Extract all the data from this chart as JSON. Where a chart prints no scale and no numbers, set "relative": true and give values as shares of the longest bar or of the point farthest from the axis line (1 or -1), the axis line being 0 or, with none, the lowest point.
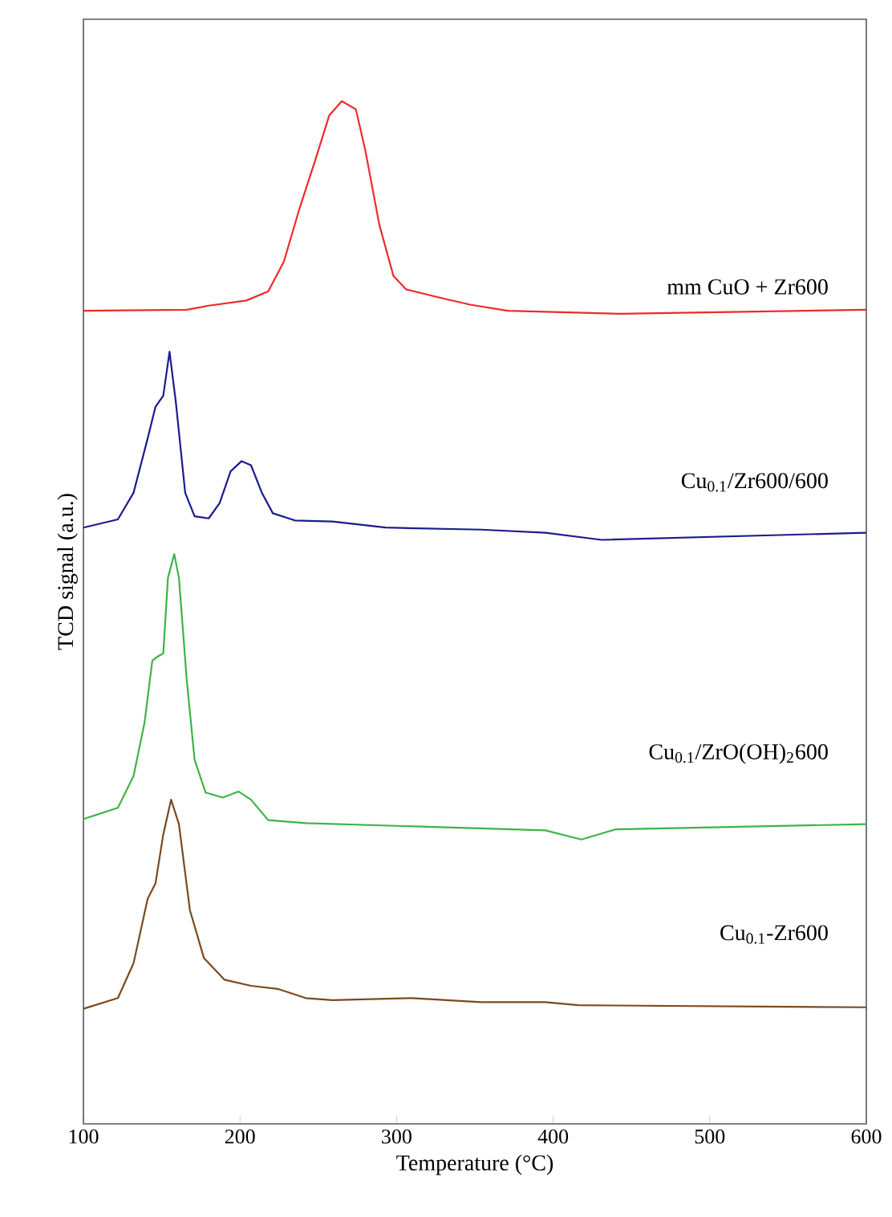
{
  "chart_data": {
    "type": "line",
    "relative": true,
    "xlabel": "Temperature (°C)",
    "ylabel": "TCD signal (a.u.)",
    "xlim": [
      100,
      600
    ],
    "xticks": [
      100,
      200,
      300,
      400,
      500,
      600
    ],
    "series": [
      {
        "name": "mm CuO + Zr600",
        "color": "#ee2a2a",
        "x": [
          100,
          166,
          180,
          204,
          218,
          228,
          238,
          248,
          257,
          265,
          274,
          280,
          289,
          298,
          306,
          327,
          347,
          371,
          395,
          443,
          600
        ],
        "values": [
          0.795,
          0.796,
          0.8,
          0.805,
          0.814,
          0.843,
          0.895,
          0.942,
          0.986,
          1.0,
          0.992,
          0.952,
          0.879,
          0.829,
          0.816,
          0.808,
          0.801,
          0.795,
          0.794,
          0.792,
          0.796
        ]
      },
      {
        "name": "Cu$_{0.1}$/Zr600/600",
        "color": "#1c1c8e",
        "x": [
          100,
          122,
          132,
          141,
          146,
          151,
          155,
          159,
          165,
          171,
          180,
          187,
          194,
          201,
          207,
          214,
          221,
          235,
          259,
          293,
          354,
          395,
          431,
          600
        ],
        "values": [
          0.583,
          0.591,
          0.617,
          0.67,
          0.701,
          0.712,
          0.755,
          0.706,
          0.617,
          0.594,
          0.592,
          0.607,
          0.638,
          0.648,
          0.644,
          0.617,
          0.597,
          0.59,
          0.589,
          0.583,
          0.581,
          0.578,
          0.571,
          0.578
        ]
      },
      {
        "name": "Cu$_{0.1}$/ZrO(OH)$_{2}$600",
        "color": "#3cb44a",
        "x": [
          100,
          122,
          132,
          139,
          144,
          147.5,
          151,
          154,
          158,
          161,
          166,
          171,
          178,
          189,
          199,
          207,
          218,
          242,
          395,
          418,
          440,
          600
        ],
        "values": [
          0.298,
          0.309,
          0.34,
          0.392,
          0.453,
          0.457,
          0.46,
          0.534,
          0.557,
          0.534,
          0.434,
          0.356,
          0.324,
          0.319,
          0.325,
          0.317,
          0.297,
          0.294,
          0.287,
          0.278,
          0.288,
          0.293
        ]
      },
      {
        "name": "Cu$_{0.1}$-Zr600",
        "color": "#7a4a1e",
        "x": [
          100,
          122,
          132,
          141,
          146,
          151,
          156,
          161,
          168,
          177,
          190,
          207,
          224,
          242,
          259,
          310,
          354,
          395,
          416,
          600
        ],
        "values": [
          0.1125,
          0.123,
          0.157,
          0.22,
          0.235,
          0.283,
          0.317,
          0.293,
          0.209,
          0.162,
          0.141,
          0.135,
          0.132,
          0.123,
          0.121,
          0.123,
          0.119,
          0.119,
          0.116,
          0.114
        ]
      }
    ]
  }
}
